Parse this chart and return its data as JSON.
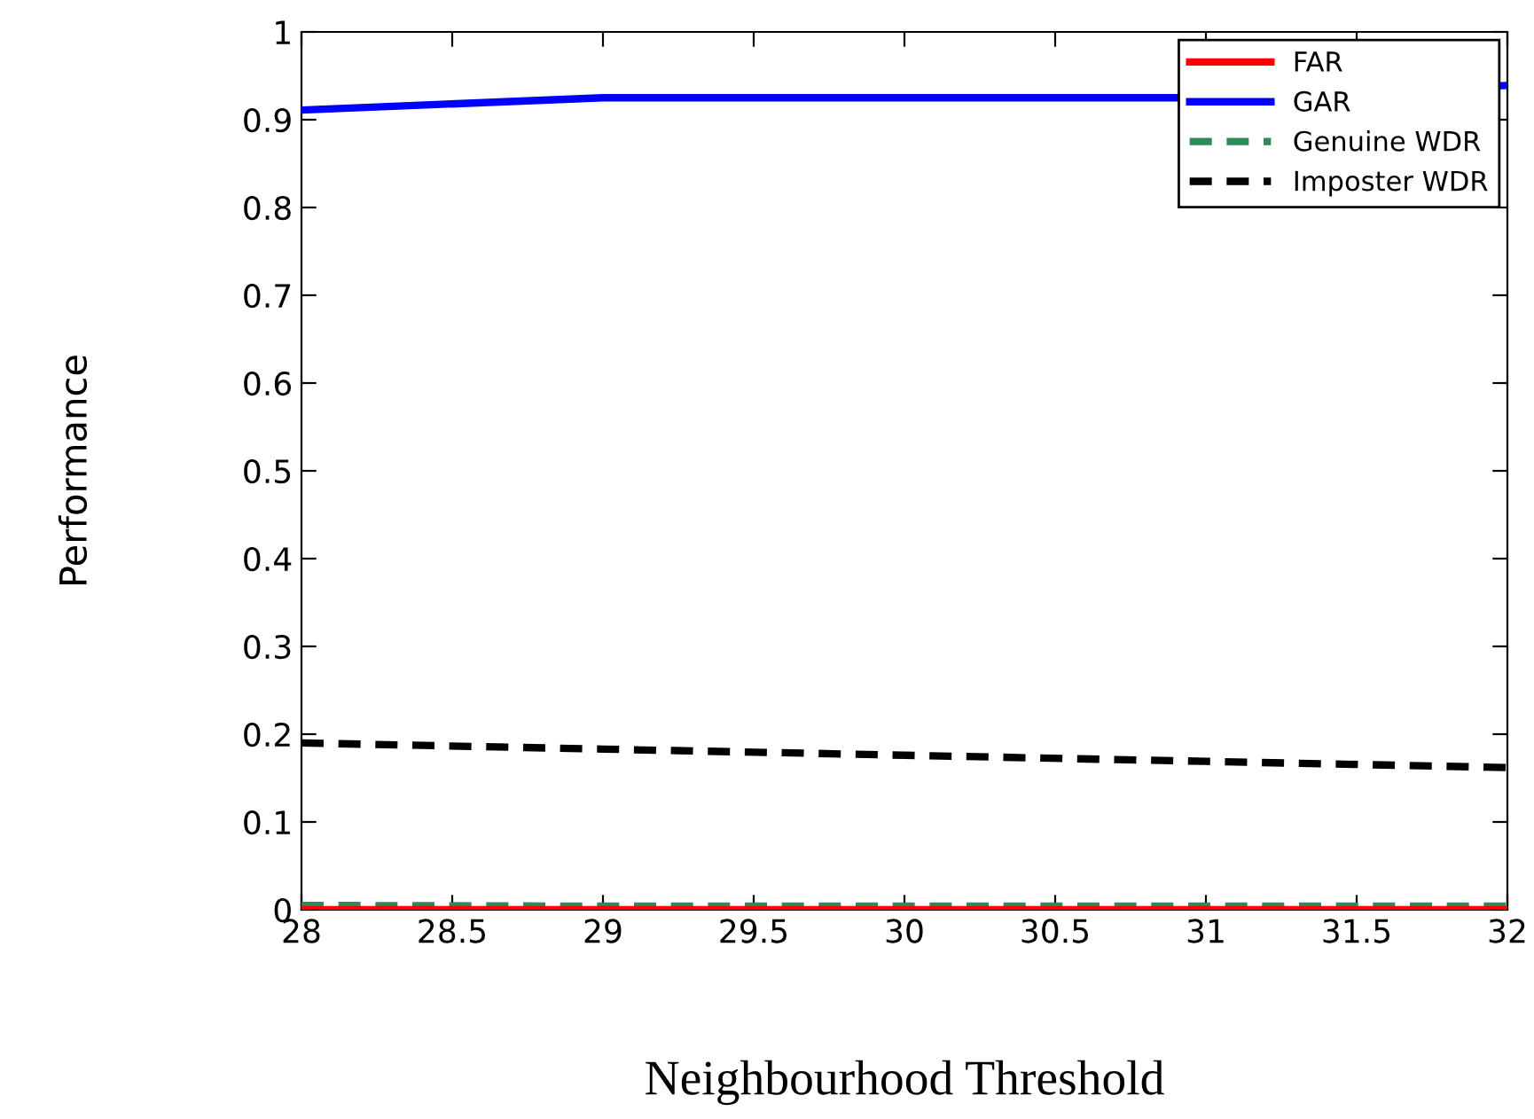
{
  "chart_data": {
    "type": "line",
    "xlabel": "Neighbourhood Threshold",
    "ylabel": "Performance",
    "x": [
      28,
      29,
      30,
      31,
      32
    ],
    "series": [
      {
        "name": "FAR",
        "color": "#ff0000",
        "values": [
          0,
          0,
          0,
          0,
          0
        ],
        "line_style": "solid"
      },
      {
        "name": "GAR",
        "color": "#0000ff",
        "values": [
          0.911,
          0.925,
          0.925,
          0.925,
          0.939
        ],
        "line_style": "solid"
      },
      {
        "name": "Genuine WDR",
        "color": "#2e8b57",
        "values": [
          0.005,
          0.004,
          0.004,
          0.004,
          0.004
        ],
        "line_style": "dashed"
      },
      {
        "name": "Imposter WDR",
        "color": "#000000",
        "values": [
          0.19,
          0.183,
          0.176,
          0.169,
          0.162
        ],
        "line_style": "dashed"
      }
    ],
    "xlim": [
      28,
      32
    ],
    "xticks": [
      28,
      28.5,
      29,
      29.5,
      30,
      30.5,
      31,
      31.5,
      32
    ],
    "ylim": [
      0,
      1
    ],
    "yticks": [
      0,
      0.1,
      0.2,
      0.3,
      0.4,
      0.5,
      0.6,
      0.7,
      0.8,
      0.9,
      1
    ],
    "legend": "top right",
    "grid": false,
    "marker": "none"
  }
}
